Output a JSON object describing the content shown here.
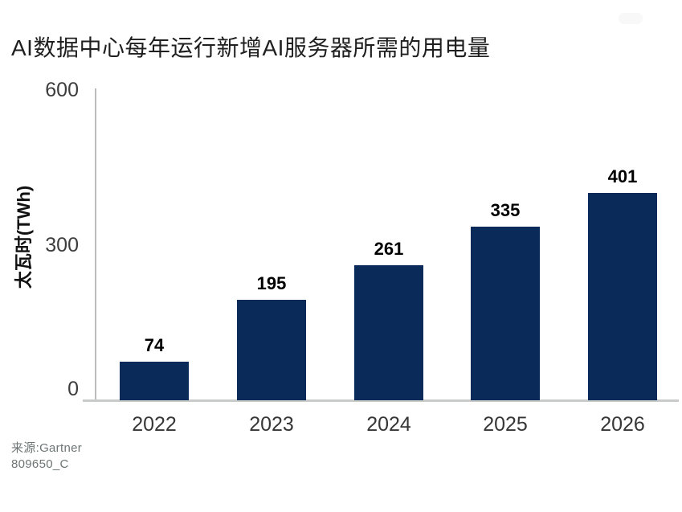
{
  "page": {
    "background": "#ffffff"
  },
  "chart_data": {
    "type": "bar",
    "title": "AI数据中心每年运行新增AI服务器所需的用电量",
    "ylabel": "太瓦时(TWh)",
    "xlabel": "",
    "categories": [
      "2022",
      "2023",
      "2024",
      "2025",
      "2026"
    ],
    "values": [
      74,
      195,
      261,
      335,
      401
    ],
    "ylim": [
      0,
      600
    ],
    "yticks": [
      0,
      300,
      600
    ],
    "grid": "off",
    "legend_position": "none",
    "bar_color": "#0a2a5a",
    "source": "来源:Gartner",
    "document_id": "809650_C"
  }
}
